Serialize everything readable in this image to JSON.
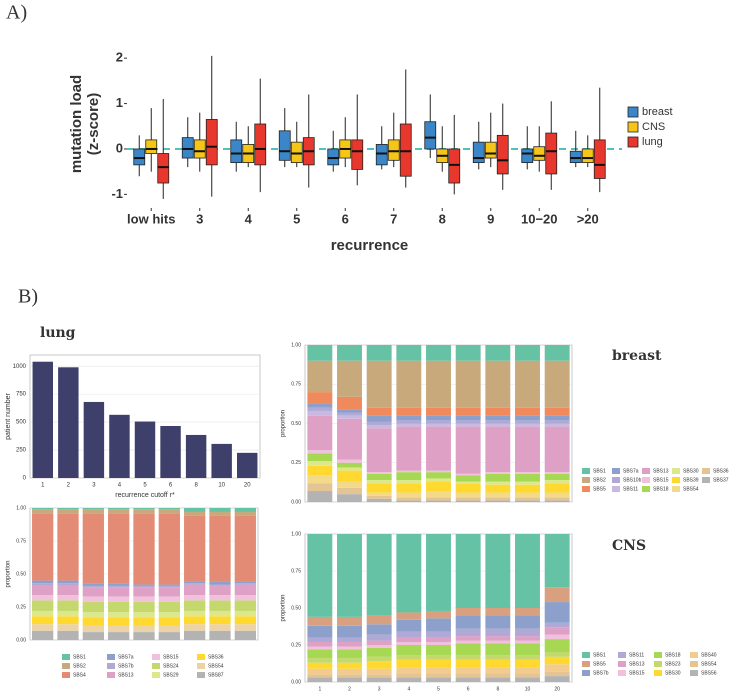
{
  "chart_data": [
    {
      "type": "box",
      "panel": "A)",
      "ylabel": [
        "mutation load",
        "(z-score)"
      ],
      "xlabel": "recurrence",
      "categories": [
        "low hits",
        "3",
        "4",
        "5",
        "6",
        "7",
        "8",
        "9",
        "10−20",
        ">20"
      ],
      "ylim": [
        -1.3,
        2.4
      ],
      "yticks": [
        -1,
        0,
        1,
        2
      ],
      "hline": 0,
      "legend": "right",
      "series": [
        {
          "name": "breast",
          "color": "#3a86c8",
          "values": [
            [
              -0.6,
              -0.35,
              -0.2,
              0,
              0.3
            ],
            [
              -0.4,
              -0.2,
              0,
              0.25,
              0.7
            ],
            [
              -0.5,
              -0.3,
              -0.1,
              0.2,
              0.6
            ],
            [
              -0.4,
              -0.25,
              -0.05,
              0.4,
              0.9
            ],
            [
              -0.5,
              -0.35,
              -0.2,
              0,
              0.4
            ],
            [
              -0.45,
              -0.35,
              -0.1,
              0.1,
              0.5
            ],
            [
              -0.2,
              0,
              0.25,
              0.6,
              1.2
            ],
            [
              -0.45,
              -0.3,
              -0.2,
              0.15,
              0.6
            ],
            [
              -0.45,
              -0.3,
              -0.1,
              0,
              0.5
            ],
            [
              -0.4,
              -0.3,
              -0.2,
              -0.05,
              0.4
            ]
          ]
        },
        {
          "name": "CNS",
          "color": "#f5c518",
          "values": [
            [
              -0.5,
              -0.1,
              0,
              0.2,
              0.9
            ],
            [
              -0.5,
              -0.2,
              -0.05,
              0.2,
              0.8
            ],
            [
              -0.4,
              -0.3,
              -0.1,
              0.1,
              0.5
            ],
            [
              -0.4,
              -0.3,
              -0.1,
              0.15,
              0.6
            ],
            [
              -0.4,
              -0.2,
              0,
              0.2,
              0.7
            ],
            [
              -0.4,
              -0.25,
              -0.05,
              0.2,
              0.8
            ],
            [
              -0.5,
              -0.3,
              -0.15,
              0,
              0.5
            ],
            [
              -0.4,
              -0.2,
              -0.1,
              0.15,
              0.8
            ],
            [
              -0.5,
              -0.25,
              -0.15,
              0.05,
              0.5
            ],
            [
              -0.4,
              -0.3,
              -0.2,
              0,
              0.3
            ]
          ]
        },
        {
          "name": "lung",
          "color": "#e8372c",
          "values": [
            [
              -1.1,
              -0.75,
              -0.4,
              -0.1,
              1.1
            ],
            [
              -1.05,
              -0.35,
              0.05,
              0.65,
              2.05
            ],
            [
              -0.95,
              -0.35,
              0,
              0.55,
              1.55
            ],
            [
              -0.85,
              -0.35,
              -0.05,
              0.25,
              1.2
            ],
            [
              -0.8,
              -0.45,
              -0.05,
              0.2,
              1.2
            ],
            [
              -0.85,
              -0.6,
              -0.05,
              0.55,
              1.75
            ],
            [
              -1.0,
              -0.75,
              -0.35,
              0,
              0.75
            ],
            [
              -0.9,
              -0.55,
              -0.25,
              0.3,
              1.0
            ],
            [
              -0.9,
              -0.55,
              -0.05,
              0.35,
              1.05
            ],
            [
              -0.95,
              -0.65,
              -0.35,
              0.2,
              1.35
            ]
          ]
        }
      ]
    },
    {
      "type": "bar",
      "panel": "B)",
      "title": "lung",
      "ylabel": "patient number",
      "xlabel": "recurrence cutoff r*",
      "categories": [
        "1",
        "2",
        "3",
        "4",
        "5",
        "6",
        "8",
        "10",
        "20"
      ],
      "values": [
        1040,
        990,
        680,
        565,
        505,
        465,
        385,
        305,
        225
      ],
      "color": "#3f3f6b",
      "ylim": [
        0,
        1100
      ],
      "yticks": [
        0,
        250,
        500,
        750,
        1000
      ],
      "grid": true
    },
    {
      "type": "stacked",
      "ylabel": "proportion",
      "ylim": [
        0,
        1
      ],
      "grid": true,
      "legend": "bottom",
      "yticks": [
        {
          "value": 0,
          "label": "0.00"
        },
        {
          "value": 0.25,
          "label": "0.25"
        },
        {
          "value": 0.5,
          "label": "0.50"
        },
        {
          "value": 0.75,
          "label": "0.75"
        },
        {
          "value": 1,
          "label": "1.00"
        }
      ],
      "series": [
        {
          "name": "SBS1",
          "color": "#66c2a5",
          "values": [
            0.01,
            0.01,
            0.01,
            0.01,
            0.01,
            0.01,
            0.03,
            0.03,
            0.03
          ]
        },
        {
          "name": "SBS2",
          "color": "#c7a97c",
          "values": [
            0.03,
            0.03,
            0.03,
            0.03,
            0.03,
            0.03,
            0.03,
            0.03,
            0.03
          ]
        },
        {
          "name": "SBS4",
          "color": "#e38b74",
          "values": [
            0.51,
            0.51,
            0.53,
            0.53,
            0.54,
            0.54,
            0.5,
            0.5,
            0.5
          ]
        },
        {
          "name": "SBS7a",
          "color": "#8da0cb",
          "values": [
            0.02,
            0.02,
            0.02,
            0.02,
            0.01,
            0.01,
            0.01,
            0.02,
            0.01
          ]
        },
        {
          "name": "SBS7b",
          "color": "#b0a9d6",
          "values": [
            0.02,
            0.02,
            0.01,
            0.01,
            0.01,
            0.01,
            0.01,
            0.01,
            0.01
          ]
        },
        {
          "name": "SBS13",
          "color": "#dea0c4",
          "values": [
            0.07,
            0.07,
            0.07,
            0.07,
            0.07,
            0.07,
            0.08,
            0.07,
            0.08
          ]
        },
        {
          "name": "SBS15",
          "color": "#f1c0dc",
          "values": [
            0.04,
            0.04,
            0.04,
            0.04,
            0.04,
            0.04,
            0.04,
            0.04,
            0.04
          ]
        },
        {
          "name": "SBS24",
          "color": "#c5d86d",
          "values": [
            0.08,
            0.08,
            0.08,
            0.08,
            0.08,
            0.08,
            0.08,
            0.08,
            0.08
          ]
        },
        {
          "name": "SBS29",
          "color": "#dde88c",
          "values": [
            0.04,
            0.04,
            0.04,
            0.04,
            0.04,
            0.04,
            0.04,
            0.04,
            0.04
          ]
        },
        {
          "name": "SBS36",
          "color": "#ffd92f",
          "values": [
            0.06,
            0.06,
            0.06,
            0.06,
            0.06,
            0.06,
            0.06,
            0.06,
            0.06
          ]
        },
        {
          "name": "SBS54",
          "color": "#ecd3a5",
          "values": [
            0.05,
            0.05,
            0.05,
            0.05,
            0.05,
            0.05,
            0.05,
            0.05,
            0.05
          ]
        },
        {
          "name": "SBS87",
          "color": "#b3b3b3",
          "values": [
            0.07,
            0.07,
            0.06,
            0.06,
            0.06,
            0.06,
            0.07,
            0.07,
            0.07
          ]
        }
      ]
    },
    {
      "type": "stacked",
      "title": "breast",
      "ylabel": "proportion",
      "ylim": [
        0,
        1
      ],
      "grid": true,
      "legend": "right",
      "yticks": [
        {
          "value": 0,
          "label": "0.00"
        },
        {
          "value": 0.25,
          "label": "0.25"
        },
        {
          "value": 0.5,
          "label": "0.50"
        },
        {
          "value": 0.75,
          "label": "0.75"
        },
        {
          "value": 1,
          "label": "1.00"
        }
      ],
      "series": [
        {
          "name": "SBS1",
          "color": "#66c2a5",
          "values": [
            0.1,
            0.1,
            0.1,
            0.1,
            0.1,
            0.1,
            0.1,
            0.1,
            0.1
          ]
        },
        {
          "name": "SBS2",
          "color": "#c7a97c",
          "values": [
            0.2,
            0.23,
            0.3,
            0.3,
            0.3,
            0.3,
            0.3,
            0.3,
            0.3
          ]
        },
        {
          "name": "SBS5",
          "color": "#f08a5d",
          "values": [
            0.07,
            0.08,
            0.05,
            0.05,
            0.05,
            0.05,
            0.05,
            0.05,
            0.05
          ]
        },
        {
          "name": "SBS7a",
          "color": "#8da0cb",
          "values": [
            0.03,
            0.02,
            0.04,
            0.03,
            0.03,
            0.03,
            0.03,
            0.03,
            0.03
          ]
        },
        {
          "name": "SBS10b",
          "color": "#b0a9d6",
          "values": [
            0.02,
            0.02,
            0.02,
            0.02,
            0.02,
            0.02,
            0.02,
            0.02,
            0.02
          ]
        },
        {
          "name": "SBS11",
          "color": "#c9b8e0",
          "values": [
            0.03,
            0.02,
            0.02,
            0.02,
            0.02,
            0.02,
            0.02,
            0.02,
            0.02
          ]
        },
        {
          "name": "SBS13",
          "color": "#dea0c4",
          "values": [
            0.22,
            0.26,
            0.28,
            0.28,
            0.28,
            0.3,
            0.29,
            0.29,
            0.29
          ]
        },
        {
          "name": "SBS15",
          "color": "#f1c0dc",
          "values": [
            0.02,
            0.02,
            0.01,
            0.01,
            0.01,
            0.01,
            0.01,
            0.01,
            0.01
          ]
        },
        {
          "name": "SBS18",
          "color": "#a6d854",
          "values": [
            0.05,
            0.03,
            0.04,
            0.05,
            0.04,
            0.04,
            0.05,
            0.05,
            0.04
          ]
        },
        {
          "name": "SBS30",
          "color": "#dde88c",
          "values": [
            0.03,
            0.02,
            0.02,
            0.02,
            0.02,
            0.01,
            0.02,
            0.02,
            0.02
          ]
        },
        {
          "name": "SBS39",
          "color": "#ffd92f",
          "values": [
            0.06,
            0.07,
            0.06,
            0.06,
            0.06,
            0.06,
            0.05,
            0.05,
            0.06
          ]
        },
        {
          "name": "SBS54",
          "color": "#f3d98a",
          "values": [
            0.05,
            0.04,
            0.02,
            0.03,
            0.04,
            0.03,
            0.03,
            0.03,
            0.03
          ]
        },
        {
          "name": "SBS36",
          "color": "#e5c494",
          "values": [
            0.05,
            0.04,
            0.02,
            0.02,
            0.02,
            0.02,
            0.02,
            0.02,
            0.02
          ]
        },
        {
          "name": "SBS37",
          "color": "#b3b3b3",
          "values": [
            0.07,
            0.05,
            0.02,
            0.01,
            0.01,
            0.01,
            0.01,
            0.01,
            0.01
          ]
        }
      ]
    },
    {
      "type": "stacked",
      "title": "CNS",
      "ylabel": "proportion",
      "ylim": [
        0,
        1
      ],
      "grid": true,
      "legend": "right",
      "categories": [
        "1",
        "2",
        "3",
        "4",
        "5",
        "6",
        "8",
        "10",
        "20"
      ],
      "yticks": [
        {
          "value": 0,
          "label": "0.00"
        },
        {
          "value": 0.25,
          "label": "0.25"
        },
        {
          "value": 0.5,
          "label": "0.50"
        },
        {
          "value": 0.75,
          "label": "0.75"
        },
        {
          "value": 1,
          "label": "1.00"
        }
      ],
      "series": [
        {
          "name": "SBS1",
          "color": "#66c2a5",
          "values": [
            0.56,
            0.56,
            0.55,
            0.53,
            0.52,
            0.5,
            0.5,
            0.5,
            0.36
          ]
        },
        {
          "name": "SBS5",
          "color": "#d9a07f",
          "values": [
            0.06,
            0.06,
            0.06,
            0.05,
            0.05,
            0.05,
            0.05,
            0.05,
            0.1
          ]
        },
        {
          "name": "SBS7b",
          "color": "#8da0cb",
          "values": [
            0.08,
            0.08,
            0.07,
            0.08,
            0.09,
            0.09,
            0.09,
            0.09,
            0.14
          ]
        },
        {
          "name": "SBS11",
          "color": "#b0a9d6",
          "values": [
            0.03,
            0.03,
            0.04,
            0.04,
            0.04,
            0.05,
            0.05,
            0.05,
            0.03
          ]
        },
        {
          "name": "SBS13",
          "color": "#dea0c4",
          "values": [
            0.03,
            0.03,
            0.03,
            0.03,
            0.03,
            0.03,
            0.03,
            0.03,
            0.05
          ]
        },
        {
          "name": "SBS15",
          "color": "#f1c0dc",
          "values": [
            0.02,
            0.02,
            0.02,
            0.02,
            0.02,
            0.02,
            0.02,
            0.02,
            0.03
          ]
        },
        {
          "name": "SBS18",
          "color": "#a6d854",
          "values": [
            0.06,
            0.06,
            0.06,
            0.07,
            0.07,
            0.08,
            0.08,
            0.08,
            0.09
          ]
        },
        {
          "name": "SBS23",
          "color": "#c5d86d",
          "values": [
            0.03,
            0.03,
            0.03,
            0.03,
            0.03,
            0.03,
            0.03,
            0.03,
            0.03
          ]
        },
        {
          "name": "SBS30",
          "color": "#ffd92f",
          "values": [
            0.04,
            0.04,
            0.05,
            0.05,
            0.05,
            0.05,
            0.05,
            0.05,
            0.05
          ]
        },
        {
          "name": "SBS40",
          "color": "#f2cc8f",
          "values": [
            0.04,
            0.04,
            0.04,
            0.04,
            0.04,
            0.04,
            0.04,
            0.04,
            0.05
          ]
        },
        {
          "name": "SBS54",
          "color": "#e5c494",
          "values": [
            0.02,
            0.02,
            0.02,
            0.03,
            0.03,
            0.03,
            0.03,
            0.03,
            0.03
          ]
        },
        {
          "name": "SBS56",
          "color": "#b3b3b3",
          "values": [
            0.03,
            0.03,
            0.03,
            0.03,
            0.03,
            0.03,
            0.03,
            0.03,
            0.04
          ]
        }
      ]
    }
  ]
}
